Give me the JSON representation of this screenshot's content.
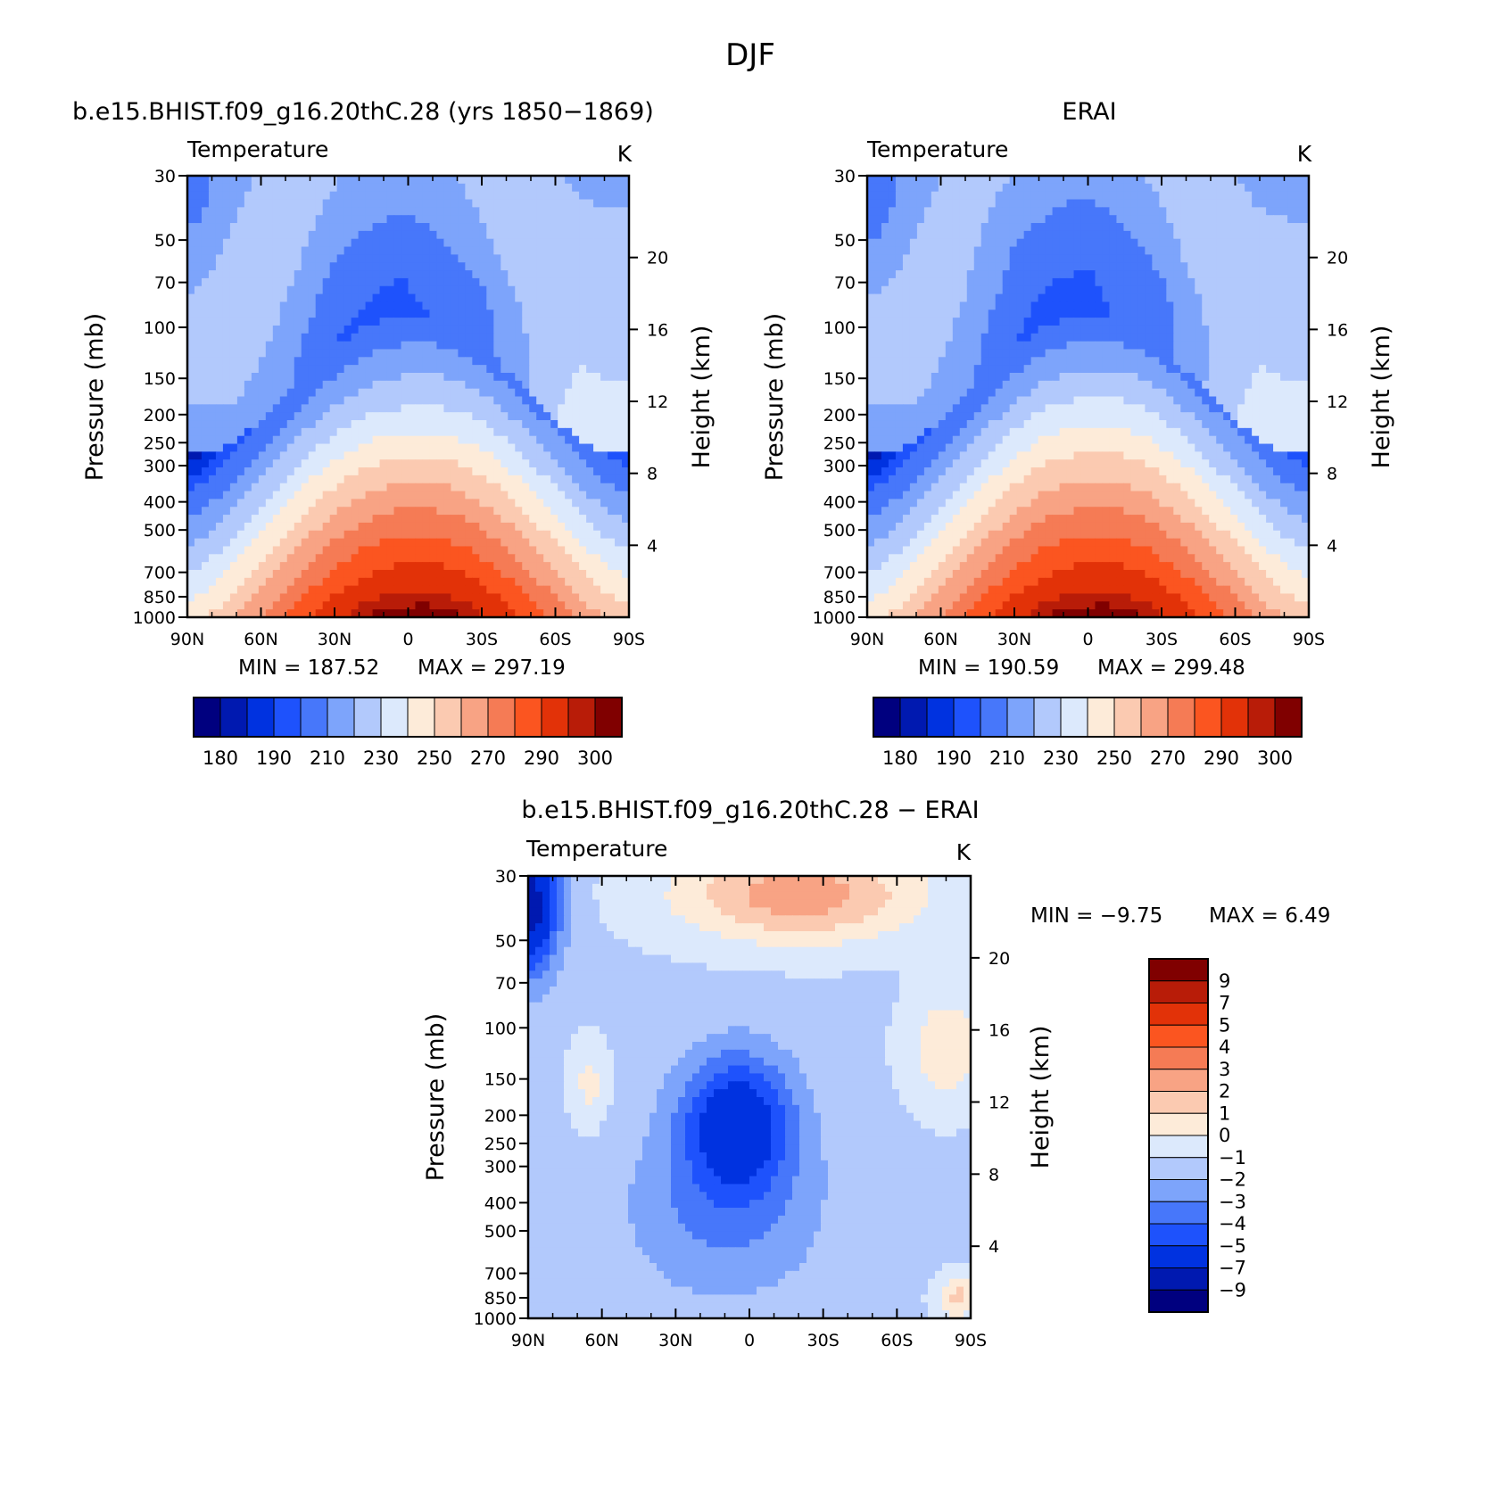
{
  "figure": {
    "title": "DJF"
  },
  "palettes": {
    "abs": [
      "#00007f",
      "#0019b0",
      "#0032e0",
      "#1e52fc",
      "#4777fa",
      "#7da4fb",
      "#b2c9fc",
      "#dce9fc",
      "#fdebd9",
      "#fbcab1",
      "#f8a384",
      "#f57b55",
      "#fb5520",
      "#e23208",
      "#b81c08",
      "#800000"
    ],
    "diff": [
      "#00007f",
      "#0019b0",
      "#0032e0",
      "#1e52fc",
      "#4777fa",
      "#7da4fb",
      "#b2c9fc",
      "#dce9fc",
      "#fdebd9",
      "#fbcab1",
      "#f8a384",
      "#f57b55",
      "#fb5520",
      "#e23208",
      "#b81c08",
      "#800000"
    ]
  },
  "chart_data": [
    {
      "type": "heatmap",
      "id": "model",
      "title": "b.e15.BHIST.f09_g16.20thC.28 (yrs 1850−1869)",
      "variable": "Temperature",
      "units": "K",
      "ylabel": "Pressure (mb)",
      "y2label": "Height (km)",
      "x_ticks": [
        "90N",
        "60N",
        "30N",
        "0",
        "30S",
        "60S",
        "90S"
      ],
      "y_ticks": [
        "30",
        "50",
        "70",
        "100",
        "150",
        "200",
        "250",
        "300",
        "400",
        "500",
        "700",
        "850",
        "1000"
      ],
      "y2_ticks": [
        "4",
        "8",
        "12",
        "16",
        "20"
      ],
      "min_label": "MIN = 187.52",
      "max_label": "MAX = 297.19",
      "colorbar_labels": [
        "180",
        "190",
        "210",
        "230",
        "250",
        "270",
        "290",
        "300"
      ],
      "colorbar_levels": [
        175,
        180,
        185,
        190,
        200,
        210,
        220,
        230,
        240,
        250,
        260,
        270,
        280,
        290,
        295,
        300
      ],
      "ylim": [
        1000,
        30
      ]
    },
    {
      "type": "heatmap",
      "id": "obs",
      "title": "ERAI",
      "variable": "Temperature",
      "units": "K",
      "ylabel": "Pressure (mb)",
      "y2label": "Height (km)",
      "x_ticks": [
        "90N",
        "60N",
        "30N",
        "0",
        "30S",
        "60S",
        "90S"
      ],
      "y_ticks": [
        "30",
        "50",
        "70",
        "100",
        "150",
        "200",
        "250",
        "300",
        "400",
        "500",
        "700",
        "850",
        "1000"
      ],
      "y2_ticks": [
        "4",
        "8",
        "12",
        "16",
        "20"
      ],
      "min_label": "MIN = 190.59",
      "max_label": "MAX = 299.48",
      "colorbar_labels": [
        "180",
        "190",
        "210",
        "230",
        "250",
        "270",
        "290",
        "300"
      ],
      "colorbar_levels": [
        175,
        180,
        185,
        190,
        200,
        210,
        220,
        230,
        240,
        250,
        260,
        270,
        280,
        290,
        295,
        300
      ],
      "ylim": [
        1000,
        30
      ]
    },
    {
      "type": "heatmap",
      "id": "diff",
      "title": "b.e15.BHIST.f09_g16.20thC.28 − ERAI",
      "variable": "Temperature",
      "units": "K",
      "ylabel": "Pressure (mb)",
      "y2label": "Height (km)",
      "x_ticks": [
        "90N",
        "60N",
        "30N",
        "0",
        "30S",
        "60S",
        "90S"
      ],
      "y_ticks": [
        "30",
        "50",
        "70",
        "100",
        "150",
        "200",
        "250",
        "300",
        "400",
        "500",
        "700",
        "850",
        "1000"
      ],
      "y2_ticks": [
        "4",
        "8",
        "12",
        "16",
        "20"
      ],
      "min_label": "MIN = −9.75",
      "max_label": "MAX = 6.49",
      "colorbar_labels": [
        "9",
        "7",
        "5",
        "4",
        "3",
        "2",
        "1",
        "0",
        "−1",
        "−2",
        "−3",
        "−4",
        "−5",
        "−7",
        "−9"
      ],
      "colorbar_levels": [
        -9,
        -7,
        -5,
        -4,
        -3,
        -2,
        -1,
        0,
        1,
        2,
        3,
        4,
        5,
        7,
        9
      ],
      "ylim": [
        1000,
        30
      ]
    }
  ]
}
